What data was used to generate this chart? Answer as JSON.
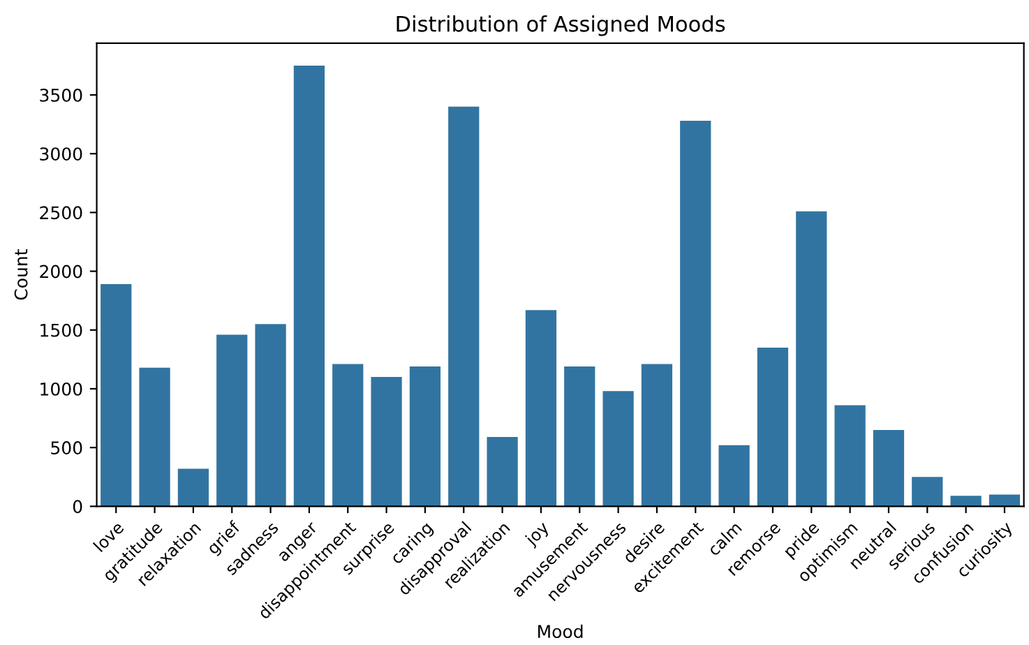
{
  "chart_data": {
    "type": "bar",
    "title": "Distribution of Assigned Moods",
    "xlabel": "Mood",
    "ylabel": "Count",
    "categories": [
      "love",
      "gratitude",
      "relaxation",
      "grief",
      "sadness",
      "anger",
      "disappointment",
      "surprise",
      "caring",
      "disapproval",
      "realization",
      "joy",
      "amusement",
      "nervousness",
      "desire",
      "excitement",
      "calm",
      "remorse",
      "pride",
      "optimism",
      "neutral",
      "serious",
      "confusion",
      "curiosity"
    ],
    "values": [
      1890,
      1180,
      320,
      1460,
      1550,
      3750,
      1210,
      1100,
      1190,
      3400,
      590,
      1670,
      1190,
      980,
      1210,
      3280,
      520,
      1350,
      2510,
      860,
      650,
      250,
      90,
      100
    ],
    "color": "#3274a1",
    "ylim": [
      0,
      3940
    ],
    "yticks": [
      0,
      500,
      1000,
      1500,
      2000,
      2500,
      3000,
      3500
    ],
    "grid": false,
    "legend": false
  }
}
